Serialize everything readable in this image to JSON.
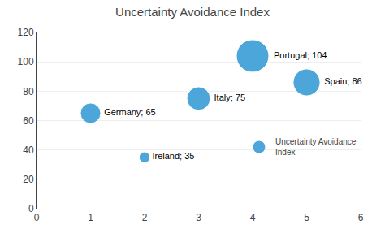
{
  "chart_data": {
    "type": "scatter",
    "title": "Uncertainty Avoidance Index",
    "x": [
      1,
      2,
      3,
      4,
      5
    ],
    "series": [
      {
        "name": "Uncertainty Avoidance\nIndex",
        "color": "#4da6d9",
        "values": [
          65,
          35,
          75,
          104,
          86
        ],
        "sizes": [
          65,
          35,
          75,
          104,
          86
        ],
        "labels": [
          "Germany; 65",
          "Ireland; 35",
          "Italy; 75",
          "Portugal; 104",
          "Spain; 86"
        ]
      }
    ],
    "xlim": [
      0,
      6
    ],
    "xticks": [
      0,
      1,
      2,
      3,
      4,
      5,
      6
    ],
    "ylim": [
      0,
      120
    ],
    "yticks": [
      0,
      20,
      40,
      60,
      80,
      100,
      120
    ],
    "grid": "y",
    "legend": "right"
  }
}
